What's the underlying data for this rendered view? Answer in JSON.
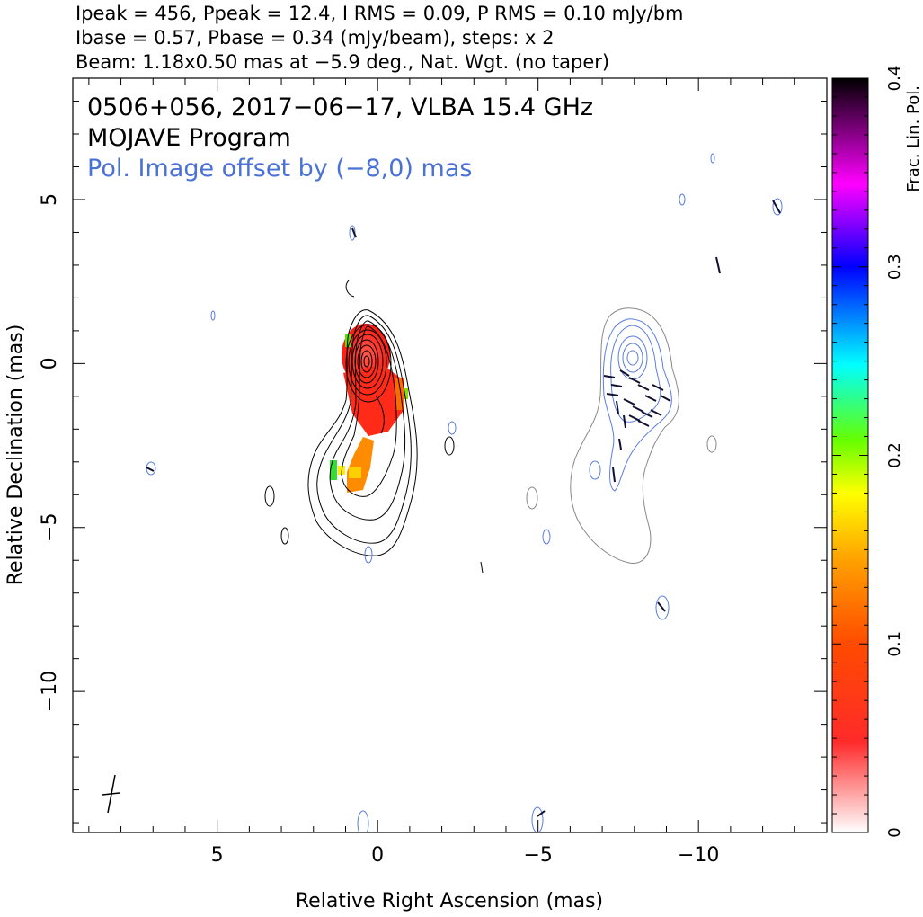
{
  "header": {
    "line1": "Ipeak = 456, Ppeak = 12.4, I RMS = 0.09, P RMS = 0.10 mJy/bm",
    "line2": "Ibase = 0.57, Pbase = 0.34 (mJy/beam), steps: x 2",
    "line3": "Beam: 1.18x0.50 mas at −5.9 deg., Nat. Wgt. (no taper)"
  },
  "plot": {
    "title_line1": "0506+056, 2017−06−17, VLBA 15.4 GHz",
    "title_line2": "MOJAVE Program",
    "offset_note": "Pol. Image offset by (−8,0) mas"
  },
  "chart_data": {
    "type": "heatmap",
    "xlabel": "Relative Right Ascension (mas)",
    "ylabel": "Relative Declination (mas)",
    "xlim": [
      9.5,
      -14.0
    ],
    "ylim": [
      -14.3,
      8.7
    ],
    "x_inverted": true,
    "x_ticks": [
      5,
      0,
      -5,
      -10
    ],
    "x_tick_labels": [
      "5",
      "0",
      "−5",
      "−10"
    ],
    "y_ticks": [
      5,
      0,
      -5,
      -10
    ],
    "y_tick_labels": [
      "5",
      "0",
      "−5",
      "−10"
    ],
    "colorbar": {
      "label": "Frac. Lin. Pol.",
      "range": [
        0,
        0.4
      ],
      "ticks": [
        0,
        0.1,
        0.2,
        0.3,
        0.4
      ],
      "tick_labels": [
        "0",
        "0.1",
        "0.2",
        "0.3",
        "0.4"
      ],
      "colors": [
        "#ffffff",
        "#ff0000",
        "#ff9900",
        "#ffff00",
        "#00ff00",
        "#00ffff",
        "#0000ff",
        "#ff00ff",
        "#000000"
      ]
    },
    "stokes_i_peak_position": [
      0,
      0
    ],
    "polarization_image_offset": [
      -8,
      0
    ],
    "grid": false
  }
}
